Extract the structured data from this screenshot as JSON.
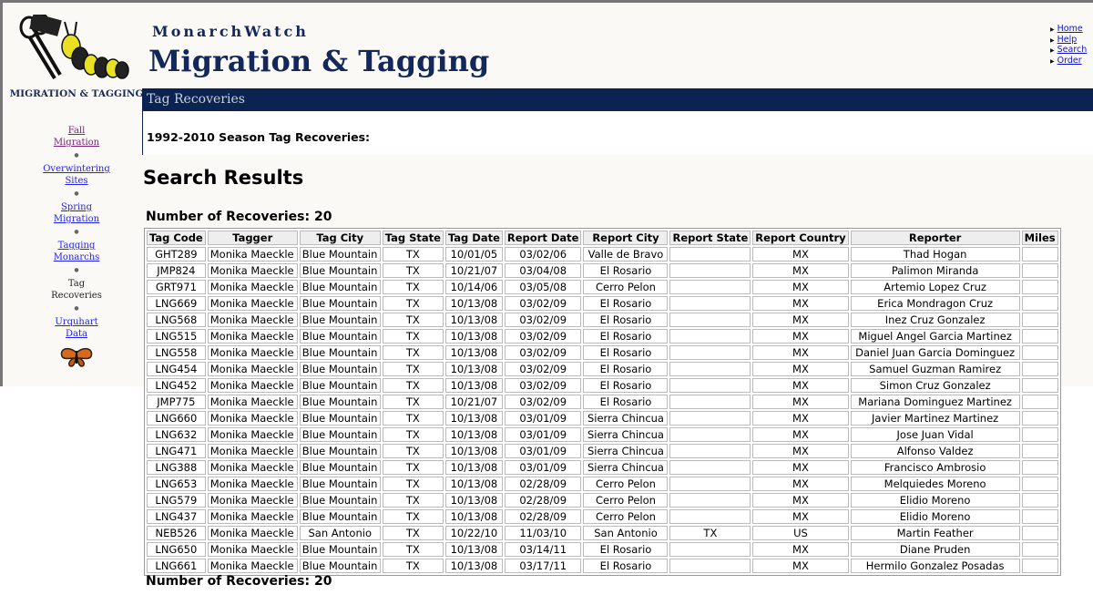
{
  "header": {
    "brand": "MonarchWatch",
    "title": "Migration & Tagging",
    "section_bar": "Tag Recoveries"
  },
  "toplinks": [
    "Home",
    "Help",
    "Search",
    "Order"
  ],
  "sidebar": {
    "heading": "MIGRATION & TAGGING",
    "items": [
      {
        "label": "Fall Migration",
        "link": true,
        "visited": true
      },
      {
        "label": "Overwintering Sites",
        "link": true
      },
      {
        "label": "Spring Migration",
        "link": true
      },
      {
        "label": "Tagging Monarchs",
        "link": true
      },
      {
        "label": "Tag Recoveries",
        "link": false
      },
      {
        "label": "Urquhart Data",
        "link": true
      }
    ]
  },
  "main": {
    "season_heading": "1992-2010 Season Tag Recoveries:",
    "results_title": "Search Results",
    "count_label": "Number of Recoveries: 20",
    "columns": [
      "Tag Code",
      "Tagger",
      "Tag City",
      "Tag State",
      "Tag Date",
      "Report Date",
      "Report City",
      "Report State",
      "Report Country",
      "Reporter",
      "Miles"
    ],
    "rows": [
      [
        "GHT289",
        "Monika Maeckle",
        "Blue Mountain",
        "TX",
        "10/01/05",
        "03/02/06",
        "Valle de Bravo",
        "",
        "MX",
        "Thad Hogan",
        ""
      ],
      [
        "JMP824",
        "Monika Maeckle",
        "Blue Mountain",
        "TX",
        "10/21/07",
        "03/04/08",
        "El Rosario",
        "",
        "MX",
        "Palimon Miranda",
        ""
      ],
      [
        "GRT971",
        "Monika Maeckle",
        "Blue Mountain",
        "TX",
        "10/14/06",
        "03/05/08",
        "Cerro Pelon",
        "",
        "MX",
        "Artemio Lopez Cruz",
        ""
      ],
      [
        "LNG669",
        "Monika Maeckle",
        "Blue Mountain",
        "TX",
        "10/13/08",
        "03/02/09",
        "El Rosario",
        "",
        "MX",
        "Erica Mondragon Cruz",
        ""
      ],
      [
        "LNG568",
        "Monika Maeckle",
        "Blue Mountain",
        "TX",
        "10/13/08",
        "03/02/09",
        "El Rosario",
        "",
        "MX",
        "Inez Cruz Gonzalez",
        ""
      ],
      [
        "LNG515",
        "Monika Maeckle",
        "Blue Mountain",
        "TX",
        "10/13/08",
        "03/02/09",
        "El Rosario",
        "",
        "MX",
        "Miguel Angel Garcia Martinez",
        ""
      ],
      [
        "LNG558",
        "Monika Maeckle",
        "Blue Mountain",
        "TX",
        "10/13/08",
        "03/02/09",
        "El Rosario",
        "",
        "MX",
        "Daniel Juan Garcia Dominguez",
        ""
      ],
      [
        "LNG454",
        "Monika Maeckle",
        "Blue Mountain",
        "TX",
        "10/13/08",
        "03/02/09",
        "El Rosario",
        "",
        "MX",
        "Samuel Guzman Ramirez",
        ""
      ],
      [
        "LNG452",
        "Monika Maeckle",
        "Blue Mountain",
        "TX",
        "10/13/08",
        "03/02/09",
        "El Rosario",
        "",
        "MX",
        "Simon Cruz Gonzalez",
        ""
      ],
      [
        "JMP775",
        "Monika Maeckle",
        "Blue Mountain",
        "TX",
        "10/21/07",
        "03/02/09",
        "El Rosario",
        "",
        "MX",
        "Mariana Dominguez Martinez",
        ""
      ],
      [
        "LNG660",
        "Monika Maeckle",
        "Blue Mountain",
        "TX",
        "10/13/08",
        "03/01/09",
        "Sierra Chincua",
        "",
        "MX",
        "Javier Martinez Martinez",
        ""
      ],
      [
        "LNG632",
        "Monika Maeckle",
        "Blue Mountain",
        "TX",
        "10/13/08",
        "03/01/09",
        "Sierra Chincua",
        "",
        "MX",
        "Jose Juan Vidal",
        ""
      ],
      [
        "LNG471",
        "Monika Maeckle",
        "Blue Mountain",
        "TX",
        "10/13/08",
        "03/01/09",
        "Sierra Chincua",
        "",
        "MX",
        "Alfonso Valdez",
        ""
      ],
      [
        "LNG388",
        "Monika Maeckle",
        "Blue Mountain",
        "TX",
        "10/13/08",
        "03/01/09",
        "Sierra Chincua",
        "",
        "MX",
        "Francisco Ambrosio",
        ""
      ],
      [
        "LNG653",
        "Monika Maeckle",
        "Blue Mountain",
        "TX",
        "10/13/08",
        "02/28/09",
        "Cerro Pelon",
        "",
        "MX",
        "Melquiedes Moreno",
        ""
      ],
      [
        "LNG579",
        "Monika Maeckle",
        "Blue Mountain",
        "TX",
        "10/13/08",
        "02/28/09",
        "Cerro Pelon",
        "",
        "MX",
        "Elidio Moreno",
        ""
      ],
      [
        "LNG437",
        "Monika Maeckle",
        "Blue Mountain",
        "TX",
        "10/13/08",
        "02/28/09",
        "Cerro Pelon",
        "",
        "MX",
        "Elidio Moreno",
        ""
      ],
      [
        "NEB526",
        "Monika Maeckle",
        "San Antonio",
        "TX",
        "10/22/10",
        "11/03/10",
        "San Antonio",
        "TX",
        "US",
        "Martin Feather",
        ""
      ],
      [
        "LNG650",
        "Monika Maeckle",
        "Blue Mountain",
        "TX",
        "10/13/08",
        "03/14/11",
        "El Rosario",
        "",
        "MX",
        "Diane Pruden",
        ""
      ],
      [
        "LNG661",
        "Monika Maeckle",
        "Blue Mountain",
        "TX",
        "10/13/08",
        "03/17/11",
        "El Rosario",
        "",
        "MX",
        "Hermilo Gonzalez Posadas",
        ""
      ]
    ]
  }
}
